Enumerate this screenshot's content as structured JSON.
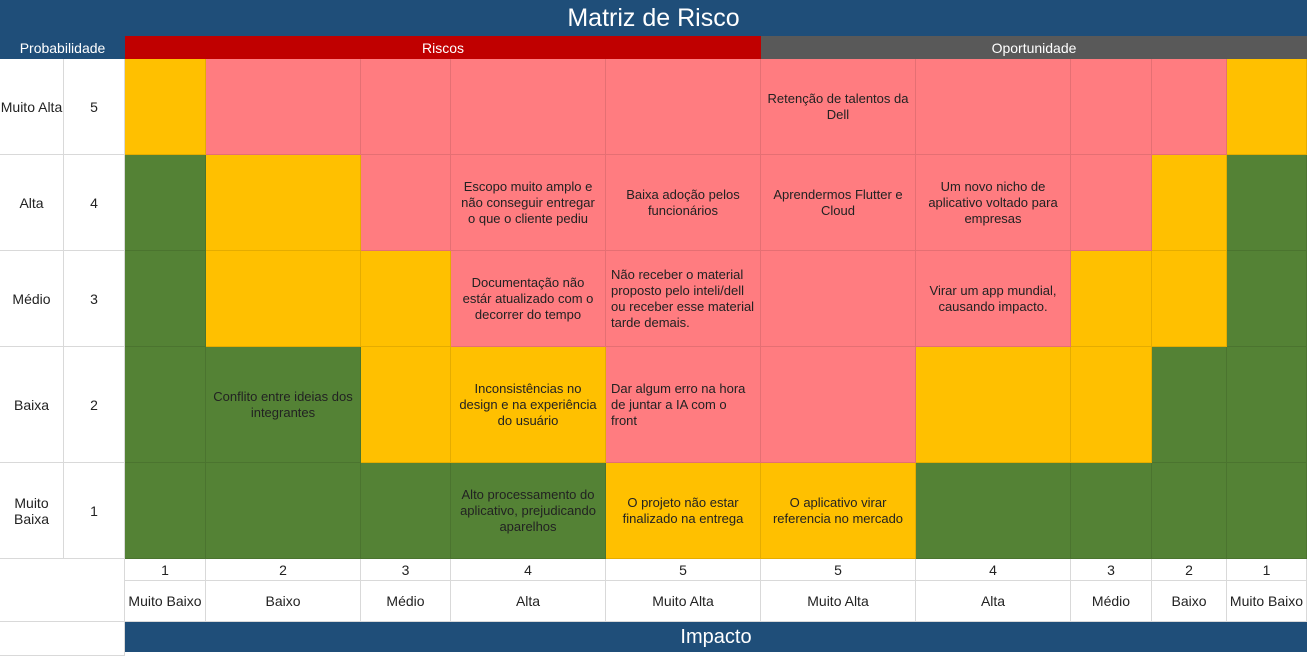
{
  "title": "Matriz de Risco",
  "headers": {
    "probabilidade": "Probabilidade",
    "riscos": "Riscos",
    "oportunidade": "Oportunidade"
  },
  "rows": [
    {
      "label": "Muito Alta",
      "level": "5"
    },
    {
      "label": "Alta",
      "level": "4"
    },
    {
      "label": "Médio",
      "level": "3"
    },
    {
      "label": "Baixa",
      "level": "2"
    },
    {
      "label": "Muito Baixa",
      "level": "1"
    }
  ],
  "colors": {
    "green": "#548235",
    "yellow": "#ffc000",
    "pink": "#ff7c80",
    "header_blue": "#1f4e79",
    "header_red": "#c00000",
    "header_gray": "#595959"
  },
  "grid": [
    [
      {
        "c": "Y",
        "t": ""
      },
      {
        "c": "P",
        "t": ""
      },
      {
        "c": "P",
        "t": ""
      },
      {
        "c": "P",
        "t": ""
      },
      {
        "c": "P",
        "t": ""
      },
      {
        "c": "P",
        "t": "Retenção de talentos da Dell"
      },
      {
        "c": "P",
        "t": ""
      },
      {
        "c": "P",
        "t": ""
      },
      {
        "c": "P",
        "t": ""
      },
      {
        "c": "Y",
        "t": ""
      }
    ],
    [
      {
        "c": "G",
        "t": ""
      },
      {
        "c": "Y",
        "t": ""
      },
      {
        "c": "P",
        "t": ""
      },
      {
        "c": "P",
        "t": "Escopo muito amplo e não conseguir entregar o que o cliente pediu"
      },
      {
        "c": "P",
        "t": "Baixa adoção pelos funcionários"
      },
      {
        "c": "P",
        "t": "Aprendermos Flutter e Cloud"
      },
      {
        "c": "P",
        "t": "Um novo nicho de aplicativo voltado para empresas"
      },
      {
        "c": "P",
        "t": ""
      },
      {
        "c": "Y",
        "t": ""
      },
      {
        "c": "G",
        "t": ""
      }
    ],
    [
      {
        "c": "G",
        "t": ""
      },
      {
        "c": "Y",
        "t": ""
      },
      {
        "c": "Y",
        "t": ""
      },
      {
        "c": "P",
        "t": "Documentação não estár atualizado com o decorrer do tempo"
      },
      {
        "c": "P",
        "t": "Não receber o material proposto pelo inteli/dell ou receber esse material tarde demais.",
        "a": "left"
      },
      {
        "c": "P",
        "t": ""
      },
      {
        "c": "P",
        "t": "Virar um app mundial, causando impacto."
      },
      {
        "c": "Y",
        "t": ""
      },
      {
        "c": "Y",
        "t": ""
      },
      {
        "c": "G",
        "t": ""
      }
    ],
    [
      {
        "c": "G",
        "t": ""
      },
      {
        "c": "G",
        "t": "Conflito entre ideias dos integrantes"
      },
      {
        "c": "Y",
        "t": ""
      },
      {
        "c": "Y",
        "t": "Inconsistências no design e na experiência do usuário"
      },
      {
        "c": "P",
        "t": "Dar algum erro na hora de juntar a IA com o front",
        "a": "left"
      },
      {
        "c": "P",
        "t": ""
      },
      {
        "c": "Y",
        "t": ""
      },
      {
        "c": "Y",
        "t": ""
      },
      {
        "c": "G",
        "t": ""
      },
      {
        "c": "G",
        "t": ""
      }
    ],
    [
      {
        "c": "G",
        "t": ""
      },
      {
        "c": "G",
        "t": ""
      },
      {
        "c": "G",
        "t": ""
      },
      {
        "c": "G",
        "t": "Alto processamento do aplicativo, prejudicando aparelhos"
      },
      {
        "c": "Y",
        "t": "O projeto não estar finalizado na  entrega"
      },
      {
        "c": "Y",
        "t": "O aplicativo virar referencia no mercado"
      },
      {
        "c": "G",
        "t": ""
      },
      {
        "c": "G",
        "t": ""
      },
      {
        "c": "G",
        "t": ""
      },
      {
        "c": "G",
        "t": ""
      }
    ]
  ],
  "impact_numbers": [
    "1",
    "2",
    "3",
    "4",
    "5",
    "5",
    "4",
    "3",
    "2",
    "1"
  ],
  "impact_labels": [
    "Muito Baixo",
    "Baixo",
    "Médio",
    "Alta",
    "Muito Alta",
    "Muito Alta",
    "Alta",
    "Médio",
    "Baixo",
    "Muito Baixo"
  ],
  "impacto": "Impacto"
}
